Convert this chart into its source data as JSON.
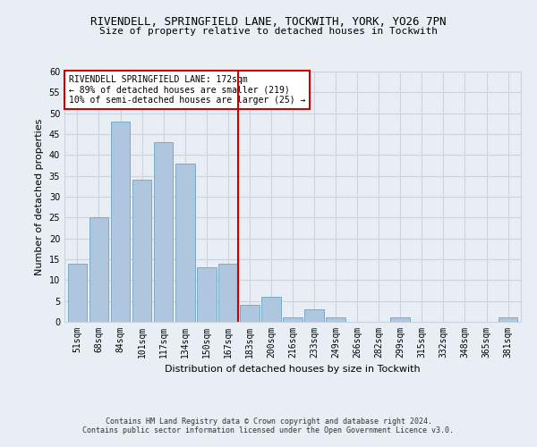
{
  "title1": "RIVENDELL, SPRINGFIELD LANE, TOCKWITH, YORK, YO26 7PN",
  "title2": "Size of property relative to detached houses in Tockwith",
  "xlabel": "Distribution of detached houses by size in Tockwith",
  "ylabel": "Number of detached properties",
  "categories": [
    "51sqm",
    "68sqm",
    "84sqm",
    "101sqm",
    "117sqm",
    "134sqm",
    "150sqm",
    "167sqm",
    "183sqm",
    "200sqm",
    "216sqm",
    "233sqm",
    "249sqm",
    "266sqm",
    "282sqm",
    "299sqm",
    "315sqm",
    "332sqm",
    "348sqm",
    "365sqm",
    "381sqm"
  ],
  "values": [
    14,
    25,
    48,
    34,
    43,
    38,
    13,
    14,
    4,
    6,
    1,
    3,
    1,
    0,
    0,
    1,
    0,
    0,
    0,
    0,
    1
  ],
  "bar_color": "#aec6de",
  "bar_edge_color": "#7aaac8",
  "vline_color": "#cc0000",
  "annotation_text": "RIVENDELL SPRINGFIELD LANE: 172sqm\n← 89% of detached houses are smaller (219)\n10% of semi-detached houses are larger (25) →",
  "annotation_box_color": "#ffffff",
  "annotation_box_edge_color": "#cc0000",
  "ylim": [
    0,
    60
  ],
  "yticks": [
    0,
    5,
    10,
    15,
    20,
    25,
    30,
    35,
    40,
    45,
    50,
    55,
    60
  ],
  "footer1": "Contains HM Land Registry data © Crown copyright and database right 2024.",
  "footer2": "Contains public sector information licensed under the Open Government Licence v3.0.",
  "bg_color": "#e8eef4",
  "grid_color": "#c8d4de",
  "title1_fontsize": 9,
  "title2_fontsize": 8,
  "ylabel_fontsize": 8,
  "xlabel_fontsize": 8,
  "tick_fontsize": 7,
  "footer_fontsize": 6,
  "annot_fontsize": 7
}
